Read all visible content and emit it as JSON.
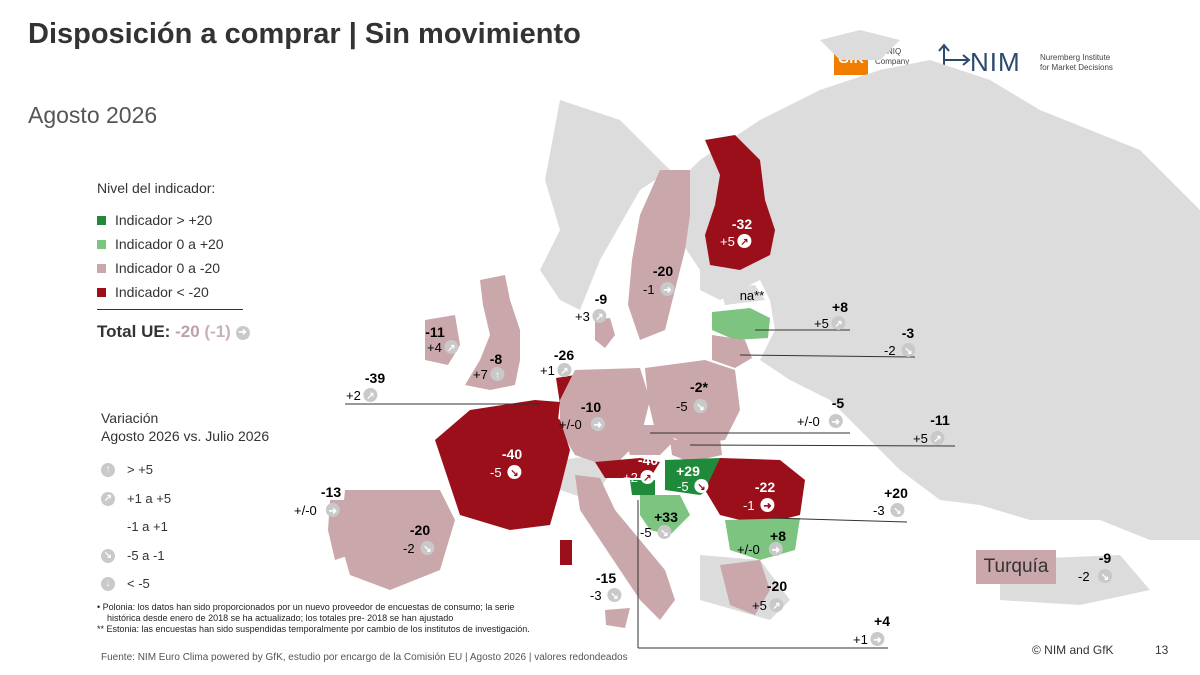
{
  "title": "Disposición a comprar | Sin movimiento",
  "subtitle": "Agosto 2026",
  "logos": {
    "gfk": "GfK",
    "gfk_sub_1": "An NIQ",
    "gfk_sub_2": "Company",
    "nim": "NIM",
    "nim_sub_1": "Nuremberg Institute",
    "nim_sub_2": "for Market Decisions"
  },
  "legend": {
    "title": "Nivel del indicador:",
    "items": [
      {
        "label": "Indicador > +20",
        "color": "#1e8a3a"
      },
      {
        "label": "Indicador 0 a +20",
        "color": "#7cc47f"
      },
      {
        "label": "Indicador 0 a -20",
        "color": "#c9a7ab"
      },
      {
        "label": "Indicador < -20",
        "color": "#9b0f1a"
      }
    ]
  },
  "total": {
    "label": "Total UE:",
    "value": "-20",
    "change": "(-1)"
  },
  "variation": {
    "title_1": "Variación",
    "title_2": "Agosto 2026 vs. Julio 2026",
    "items": [
      {
        "icon": "arrow-up-icon",
        "label": "> +5"
      },
      {
        "icon": "arrow-up-right-icon",
        "label": "+1 a +5"
      },
      {
        "icon": "no-icon",
        "label": "-1 a +1"
      },
      {
        "icon": "arrow-down-right-icon",
        "label": "-5 a -1"
      },
      {
        "icon": "arrow-down-icon",
        "label": "< -5"
      }
    ]
  },
  "notes": [
    "•   Polonia: los datos han sido proporcionados por un nuevo proveedor de encuestas de consumo; la serie histórica desde enero de 2018  se ha actualizado; los totales pre- 2018 se han ajustado",
    "**  Estonia: las encuestas han sido suspendidas temporalmente por cambio de los institutos de investigación."
  ],
  "source": "Fuente: NIM Euro Clima powered by GfK, estudio por encargo de la Comisión EU | Agosto 2026 | valores redondeados",
  "copyright": "© NIM and GfK",
  "page_number": "13",
  "turkey": {
    "label": "Turquía",
    "value": "-9",
    "change": "-2"
  },
  "countries": [
    {
      "id": "finland",
      "value": "-32",
      "change": "+5",
      "icon": "arrow-up-right-icon"
    },
    {
      "id": "sweden",
      "value": "-20",
      "change": "-1",
      "icon": "arrow-right-icon"
    },
    {
      "id": "denmark",
      "value": "-9",
      "change": "+3",
      "icon": "arrow-up-right-icon"
    },
    {
      "id": "estonia",
      "value": "na**",
      "change": "",
      "icon": ""
    },
    {
      "id": "latvia",
      "value": "+8",
      "change": "+5",
      "icon": "arrow-up-right-icon"
    },
    {
      "id": "lithuania",
      "value": "-3",
      "change": "-2",
      "icon": "arrow-down-right-icon"
    },
    {
      "id": "ireland",
      "value": "-11",
      "change": "+4",
      "icon": "arrow-up-right-icon"
    },
    {
      "id": "uk",
      "value": "-8",
      "change": "+7",
      "icon": "arrow-up-icon"
    },
    {
      "id": "netherlands",
      "value": "-26",
      "change": "+1",
      "icon": "arrow-up-right-icon"
    },
    {
      "id": "belgium",
      "value": "-39",
      "change": "+2",
      "icon": "arrow-up-right-icon"
    },
    {
      "id": "germany",
      "value": "-10",
      "change": "+/-0",
      "icon": "arrow-right-icon"
    },
    {
      "id": "poland",
      "value": "-2*",
      "change": "-5",
      "icon": "arrow-down-right-icon"
    },
    {
      "id": "czechia",
      "value": "-5",
      "change": "+/-0",
      "icon": "arrow-right-icon"
    },
    {
      "id": "slovakia",
      "value": "-11",
      "change": "+5",
      "icon": "arrow-up-right-icon"
    },
    {
      "id": "france",
      "value": "-40",
      "change": "-5",
      "icon": "arrow-down-right-icon"
    },
    {
      "id": "austria",
      "value": "-40",
      "change": "+2",
      "icon": "arrow-up-right-icon"
    },
    {
      "id": "hungary",
      "value": "+29",
      "change": "-5",
      "icon": "arrow-down-right-icon"
    },
    {
      "id": "romania",
      "value": "-22",
      "change": "-1",
      "icon": "arrow-right-icon"
    },
    {
      "id": "luxembourg",
      "value": "+20",
      "change": "-3",
      "icon": "arrow-down-right-icon"
    },
    {
      "id": "croatia",
      "value": "+33",
      "change": "-5",
      "icon": "arrow-down-right-icon"
    },
    {
      "id": "bulgaria",
      "value": "+8",
      "change": "+/-0",
      "icon": "arrow-right-icon"
    },
    {
      "id": "portugal",
      "value": "-13",
      "change": "+/-0",
      "icon": "arrow-right-icon"
    },
    {
      "id": "spain",
      "value": "-20",
      "change": "-2",
      "icon": "arrow-down-right-icon"
    },
    {
      "id": "italy",
      "value": "-15",
      "change": "-3",
      "icon": "arrow-down-right-icon"
    },
    {
      "id": "greece",
      "value": "-20",
      "change": "+5",
      "icon": "arrow-up-right-icon"
    },
    {
      "id": "slovenia",
      "value": "+4",
      "change": "+1",
      "icon": "arrow-right-icon"
    }
  ]
}
